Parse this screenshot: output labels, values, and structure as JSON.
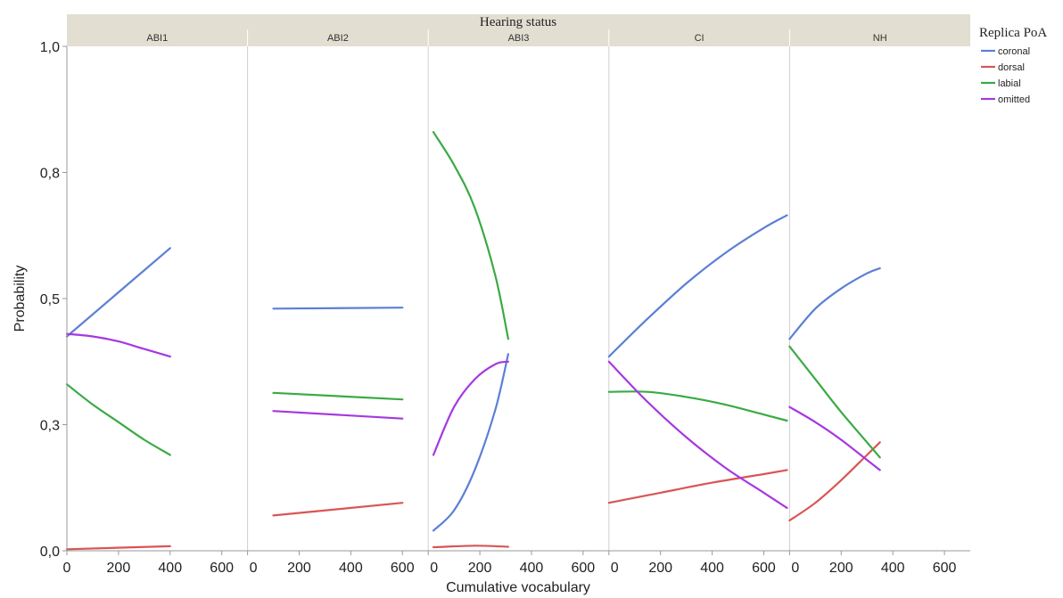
{
  "chart_data": {
    "type": "line",
    "title": "",
    "facet_title": "Hearing status",
    "xlabel": "Cumulative vocabulary",
    "ylabel": "Probability",
    "ylim": [
      0,
      1
    ],
    "xlim": [
      0,
      700
    ],
    "y_ticks": [
      {
        "value": 0.0,
        "label": "0,0"
      },
      {
        "value": 0.25,
        "label": "0,3"
      },
      {
        "value": 0.5,
        "label": "0,5"
      },
      {
        "value": 0.75,
        "label": "0,8"
      },
      {
        "value": 1.0,
        "label": "1,0"
      }
    ],
    "x_ticks": [
      0,
      200,
      400,
      600
    ],
    "grid": false,
    "legend": {
      "title": "Replica PoA",
      "placement": "right"
    },
    "series_meta": [
      {
        "name": "coronal",
        "color": "#5b7fd6"
      },
      {
        "name": "dorsal",
        "color": "#d95555"
      },
      {
        "name": "labial",
        "color": "#3aaa45"
      },
      {
        "name": "omitted",
        "color": "#a638e0"
      }
    ],
    "panels": [
      {
        "label": "ABI1",
        "series": [
          {
            "name": "coronal",
            "x": [
              0,
              400
            ],
            "y": [
              0.425,
              0.6
            ]
          },
          {
            "name": "dorsal",
            "x": [
              0,
              400
            ],
            "y": [
              0.003,
              0.009
            ]
          },
          {
            "name": "labial",
            "x": [
              0,
              100,
              200,
              300,
              400
            ],
            "y": [
              0.33,
              0.29,
              0.255,
              0.22,
              0.19
            ]
          },
          {
            "name": "omitted",
            "x": [
              0,
              100,
              200,
              300,
              400
            ],
            "y": [
              0.43,
              0.425,
              0.415,
              0.4,
              0.385
            ]
          }
        ]
      },
      {
        "label": "ABI2",
        "series": [
          {
            "name": "coronal",
            "x": [
              100,
              600
            ],
            "y": [
              0.48,
              0.482
            ]
          },
          {
            "name": "dorsal",
            "x": [
              100,
              600
            ],
            "y": [
              0.07,
              0.095
            ]
          },
          {
            "name": "labial",
            "x": [
              100,
              600
            ],
            "y": [
              0.313,
              0.3
            ]
          },
          {
            "name": "omitted",
            "x": [
              100,
              600
            ],
            "y": [
              0.277,
              0.262
            ]
          }
        ]
      },
      {
        "label": "ABI3",
        "series": [
          {
            "name": "coronal",
            "x": [
              20,
              100,
              180,
              260,
              310
            ],
            "y": [
              0.04,
              0.08,
              0.16,
              0.28,
              0.39
            ]
          },
          {
            "name": "dorsal",
            "x": [
              20,
              180,
              310
            ],
            "y": [
              0.007,
              0.01,
              0.008
            ]
          },
          {
            "name": "labial",
            "x": [
              20,
              100,
              180,
              260,
              310
            ],
            "y": [
              0.83,
              0.765,
              0.68,
              0.545,
              0.42
            ]
          },
          {
            "name": "omitted",
            "x": [
              20,
              100,
              180,
              260,
              310
            ],
            "y": [
              0.19,
              0.285,
              0.34,
              0.37,
              0.375
            ]
          }
        ]
      },
      {
        "label": "CI",
        "series": [
          {
            "name": "coronal",
            "x": [
              0,
              150,
              300,
              450,
              600,
              690
            ],
            "y": [
              0.385,
              0.46,
              0.53,
              0.59,
              0.64,
              0.665
            ]
          },
          {
            "name": "dorsal",
            "x": [
              0,
              200,
              400,
              600,
              690
            ],
            "y": [
              0.095,
              0.115,
              0.135,
              0.152,
              0.16
            ]
          },
          {
            "name": "labial",
            "x": [
              0,
              150,
              300,
              450,
              600,
              690
            ],
            "y": [
              0.315,
              0.315,
              0.305,
              0.29,
              0.27,
              0.258
            ]
          },
          {
            "name": "omitted",
            "x": [
              0,
              150,
              300,
              450,
              600,
              690
            ],
            "y": [
              0.375,
              0.295,
              0.225,
              0.165,
              0.115,
              0.085
            ]
          }
        ]
      },
      {
        "label": "NH",
        "series": [
          {
            "name": "coronal",
            "x": [
              0,
              100,
              200,
              300,
              350
            ],
            "y": [
              0.42,
              0.48,
              0.52,
              0.55,
              0.56
            ]
          },
          {
            "name": "dorsal",
            "x": [
              0,
              100,
              200,
              300,
              350
            ],
            "y": [
              0.06,
              0.095,
              0.14,
              0.19,
              0.215
            ]
          },
          {
            "name": "labial",
            "x": [
              0,
              100,
              200,
              300,
              350
            ],
            "y": [
              0.405,
              0.34,
              0.275,
              0.215,
              0.185
            ]
          },
          {
            "name": "omitted",
            "x": [
              0,
              100,
              200,
              300,
              350
            ],
            "y": [
              0.285,
              0.255,
              0.22,
              0.18,
              0.16
            ]
          }
        ]
      }
    ]
  }
}
